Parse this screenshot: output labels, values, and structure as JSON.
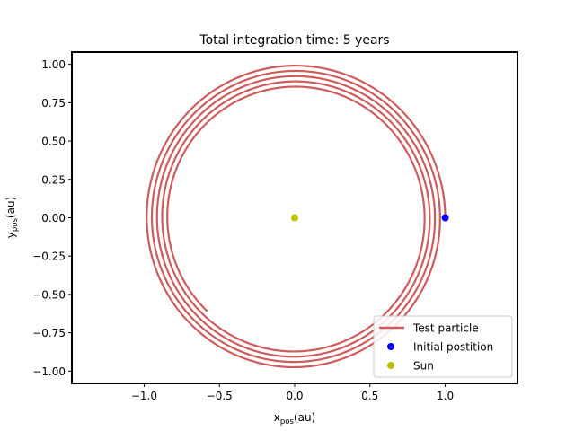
{
  "chart_data": {
    "type": "line",
    "title": "Total integration time: 5 years",
    "xlabel": {
      "main": "x",
      "sub": "pos",
      "unit": "(au)"
    },
    "ylabel": {
      "main": "y",
      "sub": "pos",
      "unit": "(au)"
    },
    "xlim": [
      -1.48,
      1.48
    ],
    "ylim": [
      -1.08,
      1.08
    ],
    "xticks": [
      -1.0,
      -0.5,
      0.0,
      0.5,
      1.0
    ],
    "xtick_labels": [
      "−1.0",
      "−0.5",
      "0.0",
      "0.5",
      "1.0"
    ],
    "yticks": [
      1.0,
      0.75,
      0.5,
      0.25,
      0.0,
      -0.25,
      -0.5,
      -0.75,
      -1.0
    ],
    "ytick_labels": [
      "1.00",
      "0.75",
      "0.50",
      "0.25",
      "0.00",
      "−0.25",
      "−0.50",
      "−0.75",
      "−1.00"
    ],
    "grid": false,
    "legend_position": "lower-right",
    "series": [
      {
        "name": "Test particle",
        "kind": "spiral-orbit",
        "color": "#cd5c5c",
        "start": [
          1.0,
          0.0
        ],
        "end": [
          -0.58,
          -0.61
        ],
        "r_start": 1.0,
        "r_end": 0.85,
        "orbits": 5
      },
      {
        "name": "Initial postition",
        "kind": "point",
        "color": "#0000ff",
        "x": 1.0,
        "y": 0.0
      },
      {
        "name": "Sun",
        "kind": "point",
        "color": "#bfbf00",
        "x": 0.0,
        "y": 0.0
      }
    ]
  }
}
